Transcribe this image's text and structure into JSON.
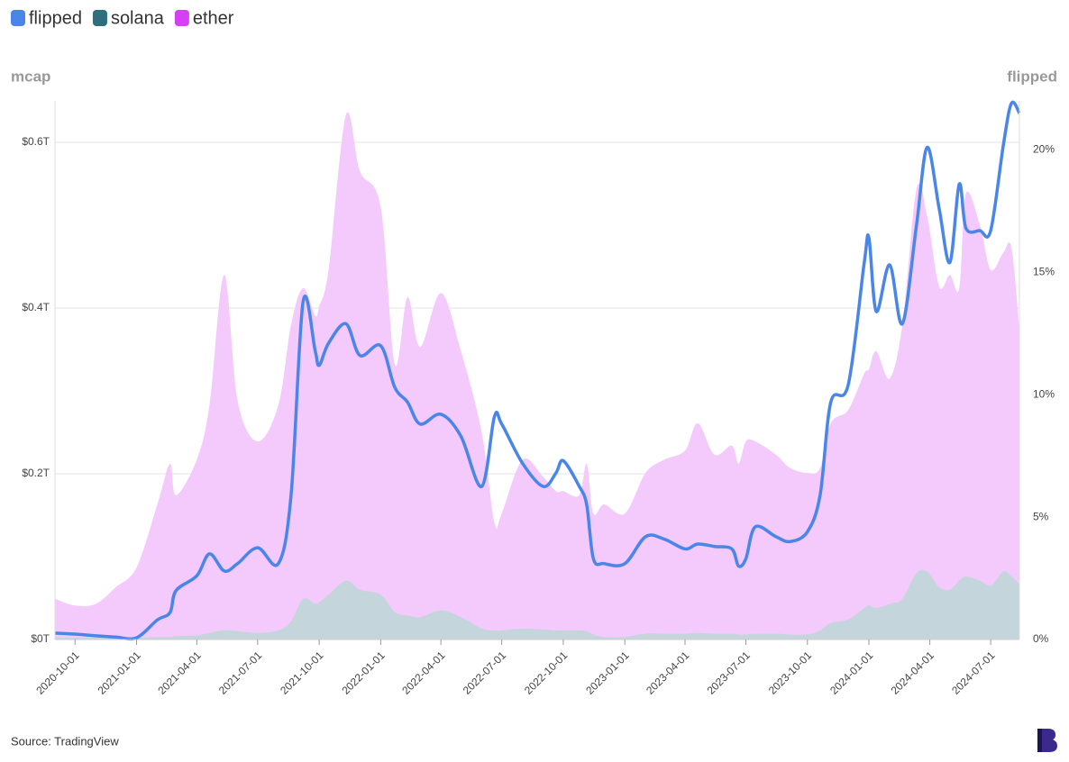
{
  "chart_data": {
    "type": "area-line",
    "y_axis_label": "mcap",
    "y2_axis_label": "flipped",
    "source": "Source: TradingView",
    "legend": "top-left",
    "grid": true,
    "x": [
      "2020-09-01",
      "2020-10-01",
      "2020-11-01",
      "2020-12-01",
      "2021-01-01",
      "2021-02-01",
      "2021-02-20",
      "2021-03-01",
      "2021-04-01",
      "2021-04-20",
      "2021-05-12",
      "2021-06-01",
      "2021-07-01",
      "2021-08-01",
      "2021-08-20",
      "2021-09-07",
      "2021-09-25",
      "2021-10-01",
      "2021-10-15",
      "2021-11-10",
      "2021-12-01",
      "2022-01-01",
      "2022-01-22",
      "2022-02-10",
      "2022-03-01",
      "2022-04-01",
      "2022-05-01",
      "2022-06-01",
      "2022-06-20",
      "2022-07-01",
      "2022-08-01",
      "2022-09-01",
      "2022-09-20",
      "2022-10-01",
      "2022-10-25",
      "2022-11-05",
      "2022-11-15",
      "2022-12-01",
      "2023-01-01",
      "2023-02-01",
      "2023-03-01",
      "2023-04-01",
      "2023-04-20",
      "2023-05-15",
      "2023-06-10",
      "2023-06-20",
      "2023-07-01",
      "2023-07-15",
      "2023-08-15",
      "2023-09-05",
      "2023-10-01",
      "2023-10-20",
      "2023-11-05",
      "2023-12-01",
      "2023-12-25",
      "2024-01-01",
      "2024-01-12",
      "2024-02-01",
      "2024-02-20",
      "2024-03-12",
      "2024-03-28",
      "2024-04-15",
      "2024-05-01",
      "2024-05-15",
      "2024-05-25",
      "2024-06-15",
      "2024-07-01",
      "2024-07-20",
      "2024-08-01",
      "2024-08-13"
    ],
    "xlim": [
      "2020-09-01",
      "2024-08-13"
    ],
    "xticks": [
      "2020-10-01",
      "2021-01-01",
      "2021-04-01",
      "2021-07-01",
      "2021-10-01",
      "2022-01-01",
      "2022-04-01",
      "2022-07-01",
      "2022-10-01",
      "2023-01-01",
      "2023-04-01",
      "2023-07-01",
      "2023-10-01",
      "2024-01-01",
      "2024-04-01",
      "2024-07-01"
    ],
    "ylim": [
      0,
      0.65
    ],
    "yticks": [
      {
        "value": 0,
        "label": "$0T"
      },
      {
        "value": 0.2,
        "label": "$0.2T"
      },
      {
        "value": 0.4,
        "label": "$0.4T"
      },
      {
        "value": 0.6,
        "label": "$0.6T"
      }
    ],
    "y2lim": [
      0,
      22
    ],
    "y2ticks": [
      {
        "value": 0,
        "label": "0%"
      },
      {
        "value": 5,
        "label": "5%"
      },
      {
        "value": 10,
        "label": "10%"
      },
      {
        "value": 15,
        "label": "15%"
      },
      {
        "value": 20,
        "label": "20%"
      }
    ],
    "series": [
      {
        "name": "flipped",
        "color": "#4a86e8",
        "kind": "line",
        "axis": "y2",
        "values": [
          0.26,
          0.22,
          0.15,
          0.1,
          0.07,
          0.8,
          1.1,
          2.0,
          2.6,
          3.5,
          2.8,
          3.1,
          3.75,
          3.1,
          5.9,
          13.8,
          11.8,
          11.2,
          12.1,
          12.9,
          11.6,
          12,
          10.3,
          9.7,
          8.8,
          9.2,
          8.3,
          6.25,
          9.1,
          8.8,
          7.2,
          6.25,
          6.8,
          7.3,
          6.25,
          5.5,
          3.3,
          3.1,
          3.1,
          4.2,
          4.1,
          3.7,
          3.9,
          3.8,
          3.7,
          3.0,
          3.3,
          4.6,
          4.2,
          4.0,
          4.4,
          5.9,
          9.7,
          10.4,
          15.4,
          16.4,
          13.4,
          15.3,
          12.9,
          16.9,
          20.1,
          17.6,
          15.4,
          18.6,
          16.8,
          16.7,
          16.7,
          20.2,
          21.9,
          21.5
        ]
      },
      {
        "name": "solana",
        "color": "#2e6e7e",
        "kind": "area",
        "values": [
          0.002,
          0.002,
          0.002,
          0.002,
          0.002,
          0.003,
          0.003,
          0.004,
          0.005,
          0.008,
          0.011,
          0.01,
          0.008,
          0.011,
          0.022,
          0.049,
          0.043,
          0.045,
          0.054,
          0.071,
          0.06,
          0.054,
          0.033,
          0.029,
          0.027,
          0.035,
          0.027,
          0.013,
          0.011,
          0.011,
          0.013,
          0.012,
          0.011,
          0.011,
          0.011,
          0.01,
          0.006,
          0.003,
          0.003,
          0.007,
          0.007,
          0.007,
          0.008,
          0.007,
          0.007,
          0.006,
          0.006,
          0.007,
          0.007,
          0.006,
          0.006,
          0.011,
          0.02,
          0.024,
          0.038,
          0.041,
          0.038,
          0.043,
          0.049,
          0.08,
          0.082,
          0.063,
          0.06,
          0.071,
          0.076,
          0.071,
          0.065,
          0.082,
          0.076,
          0.067
        ]
      },
      {
        "name": "ether",
        "color": "#d63ff5",
        "kind": "area",
        "values": [
          0.049,
          0.041,
          0.043,
          0.063,
          0.087,
          0.163,
          0.212,
          0.174,
          0.217,
          0.283,
          0.44,
          0.288,
          0.239,
          0.283,
          0.38,
          0.424,
          0.391,
          0.402,
          0.446,
          0.633,
          0.565,
          0.522,
          0.332,
          0.413,
          0.353,
          0.418,
          0.348,
          0.25,
          0.141,
          0.152,
          0.217,
          0.196,
          0.179,
          0.179,
          0.174,
          0.212,
          0.152,
          0.163,
          0.152,
          0.201,
          0.217,
          0.228,
          0.261,
          0.223,
          0.234,
          0.212,
          0.239,
          0.239,
          0.223,
          0.207,
          0.201,
          0.207,
          0.261,
          0.277,
          0.321,
          0.326,
          0.348,
          0.315,
          0.38,
          0.543,
          0.511,
          0.426,
          0.44,
          0.424,
          0.538,
          0.5,
          0.446,
          0.467,
          0.473,
          0.375
        ]
      }
    ]
  }
}
